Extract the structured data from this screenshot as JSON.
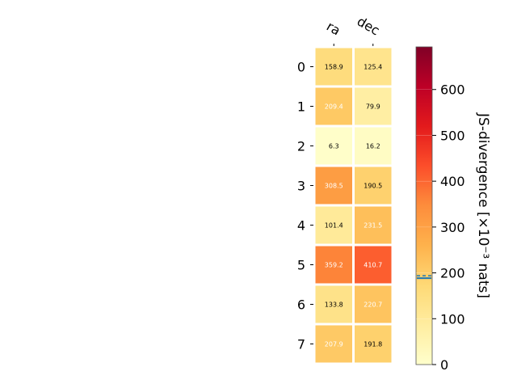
{
  "chart_data": {
    "type": "heatmap",
    "columns": [
      "ra",
      "dec"
    ],
    "rows": [
      "0",
      "1",
      "2",
      "3",
      "4",
      "5",
      "6",
      "7"
    ],
    "values": [
      [
        158.9,
        125.4
      ],
      [
        209.4,
        79.9
      ],
      [
        6.3,
        16.2
      ],
      [
        308.5,
        190.5
      ],
      [
        101.4,
        231.5
      ],
      [
        359.2,
        410.7
      ],
      [
        133.8,
        220.7
      ],
      [
        207.9,
        191.8
      ]
    ],
    "colorbar": {
      "label": "JS-divergence [×10⁻³ nats]",
      "range": [
        0,
        693
      ],
      "ticks": [
        0,
        100,
        200,
        300,
        400,
        500,
        600
      ],
      "colormap": "YlOrRd",
      "marker_value": 191
    },
    "colors": {
      "marker": "#1f77b4",
      "cell_border": "#ffffff",
      "label_dark": "#000000",
      "label_light": "#ffffff"
    }
  }
}
